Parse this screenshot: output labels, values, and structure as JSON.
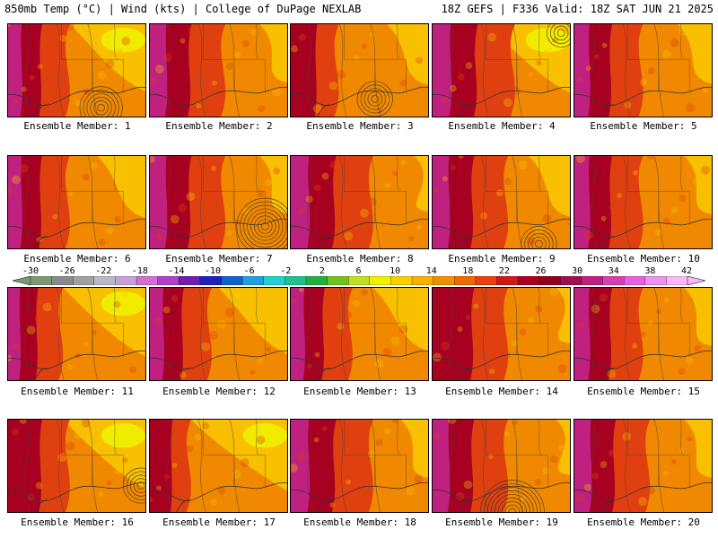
{
  "header": {
    "left": "850mb Temp (°C) | Wind (kts) | College of DuPage NEXLAB",
    "right": "18Z GEFS | F336 Valid: 18Z SAT JUN 21 2025"
  },
  "colors": {
    "-30": "#7a8c7a",
    "-26": "#8a8a8a",
    "-22": "#a0a0a0",
    "-18": "#c8b8d8",
    "-14": "#d070d0",
    "-10": "#a030c0",
    "-6": "#2020b0",
    "-2": "#20a0e0",
    "2": "#20d0c0",
    "6": "#20b040",
    "10": "#a0d020",
    "14": "#f0f000",
    "18": "#f8c000",
    "22": "#f08800",
    "26": "#e04010",
    "30": "#a80020",
    "34": "#c02080",
    "38": "#e060e0",
    "42": "#f0b0f0"
  },
  "colorbar": {
    "labels": [
      "-30",
      "-26",
      "-22",
      "-18",
      "-14",
      "-10",
      "-6",
      "-2",
      "2",
      "6",
      "10",
      "14",
      "18",
      "22",
      "26",
      "30",
      "34",
      "38",
      "42"
    ],
    "segments": [
      "#7c9a6f",
      "#8a8a8a",
      "#a0a0a0",
      "#b8b8c8",
      "#c8a0d8",
      "#d070d0",
      "#b040c8",
      "#7020b0",
      "#2020c0",
      "#1060d0",
      "#20a0e0",
      "#20d0d0",
      "#20c090",
      "#20b040",
      "#70c020",
      "#c0e020",
      "#f0f000",
      "#f8d000",
      "#f8b000",
      "#f09000",
      "#f06800",
      "#e84010",
      "#d01818",
      "#b00020",
      "#900018",
      "#a01050",
      "#c02080",
      "#d840b0",
      "#e860e0",
      "#f090f0",
      "#f8b8f8"
    ]
  },
  "members": [
    {
      "label": "Ensemble Member: 1"
    },
    {
      "label": "Ensemble Member: 2"
    },
    {
      "label": "Ensemble Member: 3"
    },
    {
      "label": "Ensemble Member: 4"
    },
    {
      "label": "Ensemble Member: 5"
    },
    {
      "label": "Ensemble Member: 6"
    },
    {
      "label": "Ensemble Member: 7"
    },
    {
      "label": "Ensemble Member: 8"
    },
    {
      "label": "Ensemble Member: 9"
    },
    {
      "label": "Ensemble Member: 10"
    },
    {
      "label": "Ensemble Member: 11"
    },
    {
      "label": "Ensemble Member: 12"
    },
    {
      "label": "Ensemble Member: 13"
    },
    {
      "label": "Ensemble Member: 14"
    },
    {
      "label": "Ensemble Member: 15"
    },
    {
      "label": "Ensemble Member: 16"
    },
    {
      "label": "Ensemble Member: 17"
    },
    {
      "label": "Ensemble Member: 18"
    },
    {
      "label": "Ensemble Member: 19"
    },
    {
      "label": "Ensemble Member: 20"
    }
  ]
}
